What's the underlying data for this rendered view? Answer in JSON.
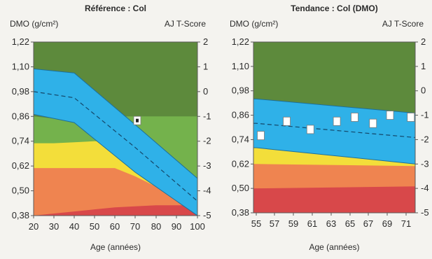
{
  "colors": {
    "dark_green": "#5d8a3c",
    "green": "#74b24c",
    "yellow": "#f3de3a",
    "orange": "#ef8450",
    "red": "#d8484a",
    "blue": "#2fb1e8",
    "frame": "#5a5a5a"
  },
  "chart_data": [
    {
      "type": "area",
      "title": "Référence : Col",
      "ylabel": "DMO (g/cm²)",
      "y2label": "AJ T-Score",
      "xlabel": "Age (années)",
      "xlim": [
        20,
        100
      ],
      "ylim": [
        0.38,
        1.22
      ],
      "y2lim": [
        -5,
        2
      ],
      "x_ticks": [
        "20",
        "30",
        "40",
        "50",
        "60",
        "70",
        "80",
        "90",
        "100"
      ],
      "y_ticks": [
        "1,22",
        "1,10",
        "0,98",
        "0,86",
        "0,74",
        "0,62",
        "0,50",
        "0,38"
      ],
      "y2_ticks": [
        "2",
        "1",
        "0",
        "-1",
        "-2",
        "-3",
        "-4",
        "-5"
      ],
      "zones": {
        "x": [
          20,
          30,
          40,
          50,
          60,
          70,
          80,
          90,
          100
        ],
        "red_top": [
          0.38,
          0.39,
          0.4,
          0.41,
          0.42,
          0.425,
          0.43,
          0.43,
          0.43
        ],
        "orange_top": [
          0.61,
          0.61,
          0.61,
          0.61,
          0.61,
          0.57,
          0.52,
          0.46,
          0.41
        ],
        "yellow_top": [
          0.73,
          0.73,
          0.735,
          0.74,
          0.74,
          0.7,
          0.65,
          0.59,
          0.53
        ],
        "green_top": [
          0.86,
          0.85,
          0.845,
          0.855,
          0.86,
          0.86,
          0.86,
          0.86,
          0.86
        ]
      },
      "reference_band": {
        "x": [
          20,
          40,
          70,
          100
        ],
        "upper": [
          1.09,
          1.07,
          0.82,
          0.56
        ],
        "mean": [
          0.98,
          0.95,
          0.71,
          0.45
        ],
        "lower": [
          0.87,
          0.83,
          0.59,
          0.38
        ]
      },
      "series": [
        {
          "values": [
            {
              "x": 71,
              "y": 0.84
            }
          ]
        }
      ]
    },
    {
      "type": "area",
      "title": "Tendance : Col (DMO)",
      "ylabel": "DMO (g/cm²)",
      "y2label": "AJ T-Score",
      "xlabel": "Age (années)",
      "xlim": [
        55,
        72
      ],
      "ylim": [
        0.38,
        1.22
      ],
      "y2lim": [
        -5,
        2
      ],
      "x_ticks": [
        "55",
        "57",
        "59",
        "61",
        "63",
        "65",
        "67",
        "69",
        "71"
      ],
      "y_ticks": [
        "1,22",
        "1,10",
        "0,98",
        "0,86",
        "0,74",
        "0,62",
        "0,50",
        "0,38"
      ],
      "y2_ticks": [
        "2",
        "1",
        "0",
        "-1",
        "-2",
        "-3",
        "-4",
        "-5"
      ],
      "zones": {
        "x": [
          55,
          72
        ],
        "red_top": [
          0.5,
          0.51
        ],
        "orange_top": [
          0.62,
          0.61
        ],
        "yellow_top": [
          0.7,
          0.62
        ],
        "green_top": [
          0.86,
          0.86
        ]
      },
      "reference_band": {
        "x": [
          55,
          72
        ],
        "upper": [
          0.94,
          0.87
        ],
        "mean": [
          0.82,
          0.75
        ],
        "lower": [
          0.7,
          0.62
        ]
      },
      "series": [
        {
          "values": [
            {
              "x": 55.5,
              "y": 0.76
            },
            {
              "x": 58.3,
              "y": 0.83
            },
            {
              "x": 60.8,
              "y": 0.79
            },
            {
              "x": 63.6,
              "y": 0.83
            },
            {
              "x": 65.5,
              "y": 0.85
            },
            {
              "x": 67.5,
              "y": 0.82
            },
            {
              "x": 69.3,
              "y": 0.86
            },
            {
              "x": 71.5,
              "y": 0.85
            }
          ]
        }
      ]
    }
  ]
}
